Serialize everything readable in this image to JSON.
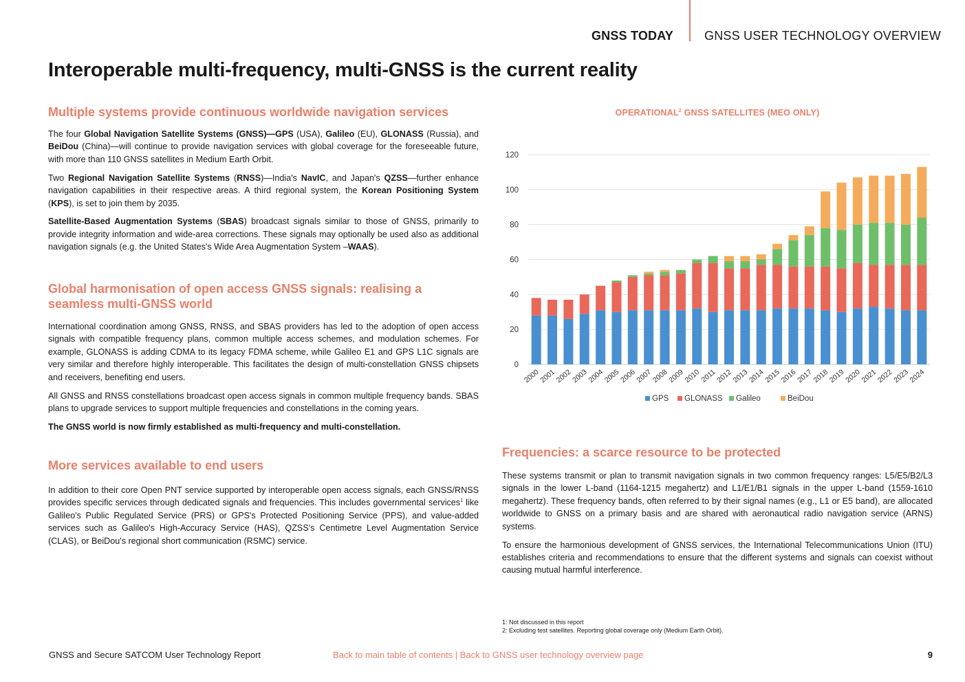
{
  "header": {
    "left": "GNSS TODAY",
    "right": "GNSS USER TECHNOLOGY OVERVIEW"
  },
  "title": "Interoperable multi-frequency, multi-GNSS is the current reality",
  "s1": {
    "heading": "Multiple systems provide continuous worldwide navigation services",
    "p1": [
      "The four ",
      "Global Navigation Satellite Systems (GNSS)",
      "—",
      "GPS",
      " (USA), ",
      "Galileo",
      " (EU), ",
      "GLONASS",
      " (Russia), and ",
      "BeiDou",
      " (China)—will continue to provide navigation services with global coverage for the foreseeable future, with more than 110 GNSS satellites in Medium Earth Orbit."
    ],
    "p2": [
      "Two ",
      "Regional Navigation Satellite Systems",
      " (",
      "RNSS",
      ")—India's ",
      "NavIC",
      ", and Japan's ",
      "QZSS",
      "—further enhance navigation capabilities in their respective areas. A third regional system, the ",
      "Korean Positioning System",
      " (",
      "KPS",
      "), is set to join them by 2035."
    ],
    "p3": [
      "Satellite-Based Augmentation Systems",
      " (",
      "SBAS",
      ") broadcast signals similar to those of GNSS, primarily to provide integrity information and wide-area corrections. These signals may optionally be used also as additional navigation signals (e.g. the United States's Wide Area Augmentation System –",
      "WAAS",
      ")."
    ]
  },
  "s2": {
    "heading": "Global harmonisation of open access GNSS signals: realising a seamless multi-GNSS world",
    "p1": "International coordination among GNSS, RNSS, and SBAS providers has led to the adoption of open access signals with compatible frequency plans, common multiple access schemes, and modulation schemes. For example, GLONASS is adding CDMA to its legacy FDMA scheme, while Galileo E1 and GPS L1C signals are very similar and therefore highly interoperable. This facilitates the design of multi-constellation GNSS chipsets and receivers, benefiting end users.",
    "p2": "All GNSS and RNSS constellations broadcast open access signals in common multiple frequency bands. SBAS plans to upgrade services to support multiple frequencies and constellations in the coming years.",
    "p3": "The GNSS world is now firmly established as multi-frequency and multi-constellation."
  },
  "s3": {
    "heading": "More services available to end users",
    "p1a": "In addition to their core Open PNT service supported by interoperable open access signals, each GNSS/RNSS provides specific services through dedicated signals and frequencies. This includes governmental services",
    "sup": "1",
    "p1b": " like Galileo's Public Regulated Service (PRS) or GPS's Protected Positioning Service (PPS), and value-added services such as Galileo's High-Accuracy Service (HAS), QZSS's Centimetre Level Augmentation Service (CLAS), or BeiDou's regional short communication (RSMC) service."
  },
  "s4": {
    "heading": "Frequencies: a scarce resource to be protected",
    "p1": "These systems transmit or plan to transmit navigation signals in two common frequency ranges: L5/E5/B2/L3 signals in the lower L-band (1164-1215 megahertz) and L1/E1/B1 signals in the upper L-band (1559-1610 megahertz). These frequency bands, often referred to by their signal names (e.g., L1 or E5 band), are allocated worldwide to GNSS on a primary basis and are shared with aeronautical radio navigation service (ARNS) systems.",
    "p2": "To ensure the harmonious development of GNSS services, the International Telecommunications Union (ITU) establishes criteria and recommendations to ensure that the different systems and signals can coexist without causing mutual harmful interference."
  },
  "footnotes": [
    "1: Not discussed in this report",
    "2: Excluding test satellites. Reporting global coverage only (Medium Earth Orbit)."
  ],
  "footer": {
    "left": "GNSS and Secure SATCOM User Technology Report",
    "link1": "Back to main table of contents",
    "sep": " | ",
    "link2": "Back to GNSS user technology overview page",
    "page": "9"
  },
  "colors": {
    "accent": "#e8806a",
    "gps": "#4a90d0",
    "glonass": "#e8685a",
    "galileo": "#6fbf6a",
    "beidou": "#f4ac5c"
  },
  "chart_data": {
    "type": "bar",
    "stacked": true,
    "title_pre": "OPERATIONAL",
    "title_sup": "2",
    "title_post": " GNSS SATELLITES (MEO ONLY)",
    "categories": [
      "2000",
      "2001",
      "2002",
      "2003",
      "2004",
      "2005",
      "2006",
      "2007",
      "2008",
      "2009",
      "2010",
      "2011",
      "2012",
      "2013",
      "2014",
      "2015",
      "2016",
      "2017",
      "2018",
      "2019",
      "2020",
      "2021",
      "2022",
      "2023",
      "2024"
    ],
    "series": [
      {
        "name": "GPS",
        "color": "#4a90d0",
        "values": [
          28,
          28,
          26,
          29,
          31,
          30,
          31,
          31,
          31,
          31,
          32,
          30,
          31,
          31,
          31,
          32,
          32,
          32,
          31,
          30,
          32,
          33,
          32,
          31,
          31
        ]
      },
      {
        "name": "GLONASS",
        "color": "#e8685a",
        "values": [
          10,
          9,
          11,
          11,
          14,
          17,
          19,
          20,
          20,
          21,
          26,
          28,
          24,
          24,
          26,
          25,
          24,
          24,
          25,
          25,
          26,
          24,
          25,
          26,
          26
        ]
      },
      {
        "name": "Galileo",
        "color": "#6fbf6a",
        "values": [
          0,
          0,
          0,
          0,
          0,
          1,
          1,
          1,
          2,
          2,
          2,
          4,
          4,
          4,
          3,
          9,
          15,
          18,
          22,
          22,
          22,
          24,
          24,
          23,
          27
        ]
      },
      {
        "name": "BeiDou",
        "color": "#f4ac5c",
        "values": [
          0,
          0,
          0,
          0,
          0,
          0,
          0,
          1,
          1,
          0,
          0,
          0,
          3,
          3,
          3,
          3,
          3,
          5,
          21,
          27,
          27,
          27,
          27,
          29,
          29
        ]
      }
    ],
    "ylim": [
      0,
      120
    ],
    "yticks": [
      "0",
      "20",
      "40",
      "60",
      "80",
      "100",
      "120"
    ],
    "grid": true,
    "legend": "bottom"
  }
}
